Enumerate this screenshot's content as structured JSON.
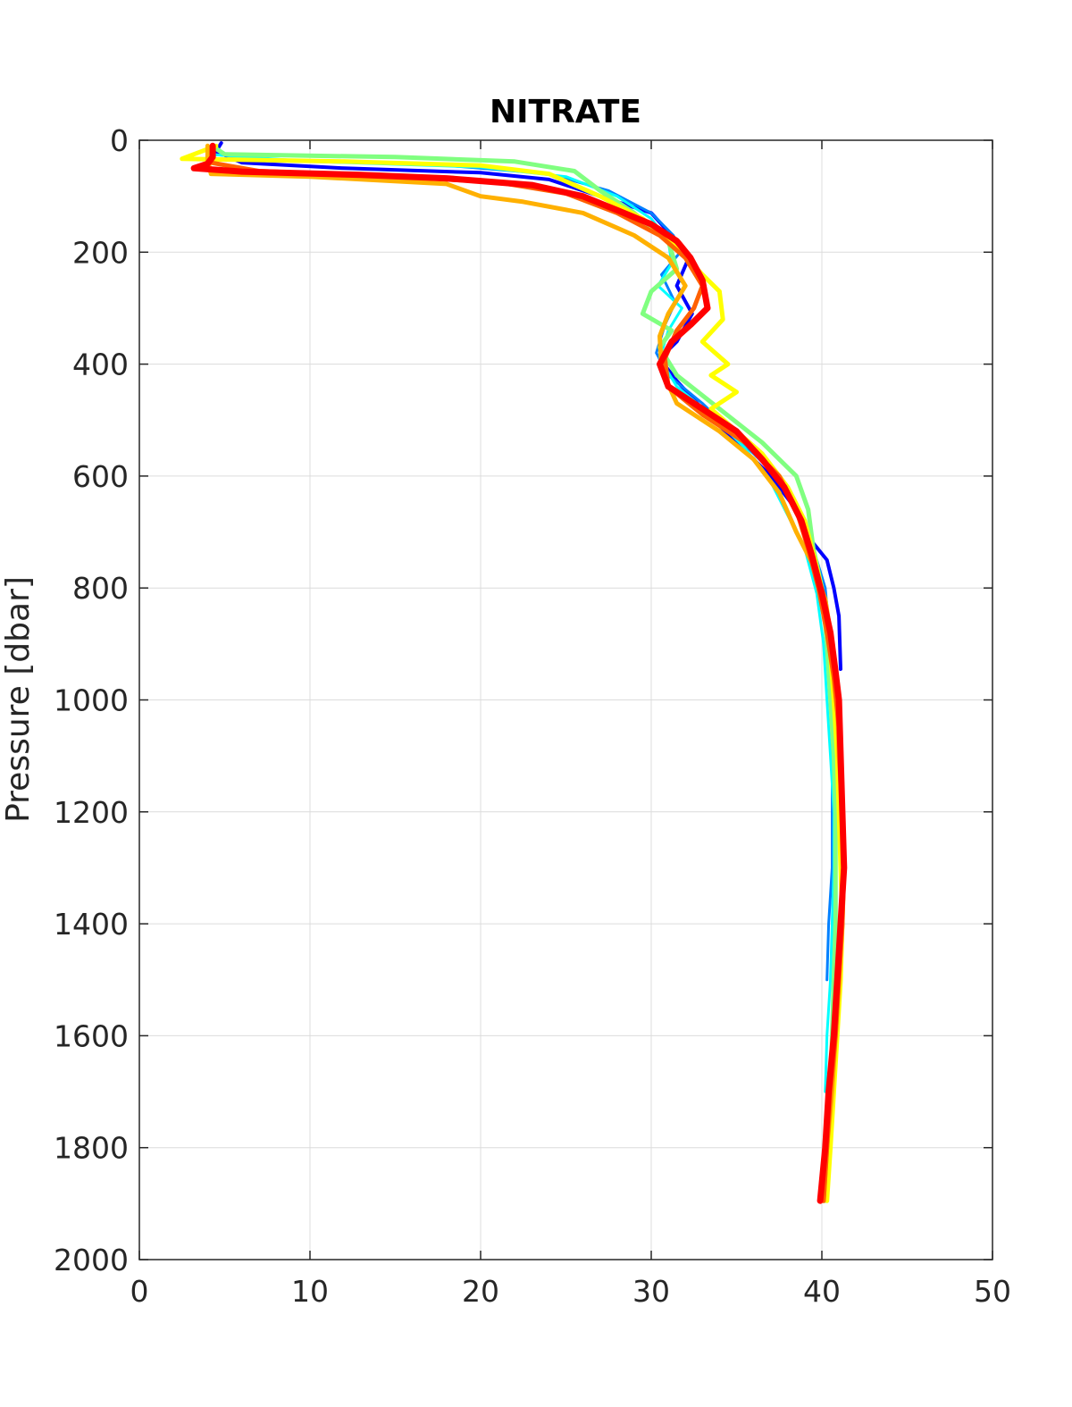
{
  "chart_data": {
    "type": "line",
    "title": "NITRATE",
    "xlabel": "",
    "ylabel": "Pressure [dbar]",
    "xlim": [
      0,
      50
    ],
    "ylim": [
      0,
      2000
    ],
    "y_reversed": true,
    "grid": true,
    "xticks": [
      0,
      10,
      20,
      30,
      40,
      50
    ],
    "yticks": [
      0,
      200,
      400,
      600,
      800,
      1000,
      1200,
      1400,
      1600,
      1800,
      2000
    ],
    "series": [
      {
        "color": "#0000ff",
        "width": 4,
        "points": [
          [
            4.8,
            5
          ],
          [
            4.5,
            20
          ],
          [
            6,
            40
          ],
          [
            12,
            50
          ],
          [
            20,
            58
          ],
          [
            24,
            70
          ],
          [
            27,
            100
          ],
          [
            30,
            130
          ],
          [
            31.5,
            180
          ],
          [
            32.2,
            210
          ],
          [
            31.5,
            260
          ],
          [
            32.4,
            310
          ],
          [
            31.5,
            360
          ],
          [
            30.5,
            390
          ],
          [
            31.5,
            430
          ],
          [
            33,
            480
          ],
          [
            35,
            540
          ],
          [
            37,
            600
          ],
          [
            38.5,
            660
          ],
          [
            39.5,
            720
          ],
          [
            40.3,
            750
          ],
          [
            40.7,
            800
          ],
          [
            41,
            850
          ],
          [
            41.1,
            945
          ]
        ]
      },
      {
        "color": "#0080ff",
        "width": 3,
        "points": [
          [
            4.5,
            10
          ],
          [
            4.2,
            25
          ],
          [
            8,
            35
          ],
          [
            18,
            45
          ],
          [
            24,
            60
          ],
          [
            27.5,
            90
          ],
          [
            30,
            130
          ],
          [
            31.3,
            170
          ],
          [
            31.7,
            200
          ],
          [
            30.6,
            240
          ],
          [
            31.4,
            290
          ],
          [
            30.8,
            330
          ],
          [
            30.3,
            380
          ],
          [
            31,
            420
          ],
          [
            33,
            470
          ],
          [
            35,
            530
          ],
          [
            37,
            590
          ],
          [
            38.5,
            650
          ],
          [
            39.5,
            730
          ],
          [
            40.2,
            800
          ],
          [
            40.5,
            900
          ],
          [
            40.6,
            1000
          ],
          [
            40.6,
            1100
          ],
          [
            40.6,
            1200
          ],
          [
            40.6,
            1300
          ],
          [
            40.4,
            1400
          ],
          [
            40.3,
            1500
          ]
        ]
      },
      {
        "color": "#00ffff",
        "width": 3,
        "points": [
          [
            4.3,
            8
          ],
          [
            4,
            25
          ],
          [
            10,
            38
          ],
          [
            20,
            48
          ],
          [
            25,
            65
          ],
          [
            28,
            100
          ],
          [
            30,
            140
          ],
          [
            31,
            180
          ],
          [
            31.2,
            220
          ],
          [
            30.4,
            260
          ],
          [
            31.8,
            300
          ],
          [
            31,
            340
          ],
          [
            30.5,
            390
          ],
          [
            31.5,
            440
          ],
          [
            33.5,
            490
          ],
          [
            35.5,
            550
          ],
          [
            37,
            610
          ],
          [
            38,
            670
          ],
          [
            39,
            730
          ],
          [
            39.7,
            810
          ],
          [
            40.1,
            900
          ],
          [
            40.3,
            1000
          ],
          [
            40.5,
            1100
          ],
          [
            40.7,
            1200
          ],
          [
            40.7,
            1300
          ],
          [
            40.6,
            1400
          ],
          [
            40.5,
            1500
          ],
          [
            40.3,
            1600
          ],
          [
            40.2,
            1700
          ]
        ]
      },
      {
        "color": "#80ff80",
        "width": 5,
        "points": [
          [
            4.5,
            15
          ],
          [
            5,
            25
          ],
          [
            15,
            30
          ],
          [
            22,
            38
          ],
          [
            25.5,
            55
          ],
          [
            27,
            90
          ],
          [
            29,
            130
          ],
          [
            31,
            180
          ],
          [
            31.5,
            230
          ],
          [
            30,
            270
          ],
          [
            29.5,
            310
          ],
          [
            31.2,
            340
          ],
          [
            30.5,
            370
          ],
          [
            31.5,
            420
          ],
          [
            34,
            480
          ],
          [
            36.5,
            540
          ],
          [
            38.5,
            600
          ],
          [
            39.2,
            660
          ],
          [
            39.5,
            730
          ],
          [
            40,
            800
          ],
          [
            40.3,
            900
          ],
          [
            40.5,
            1000
          ],
          [
            40.7,
            1100
          ],
          [
            40.8,
            1200
          ],
          [
            40.8,
            1300
          ],
          [
            40.8,
            1400
          ],
          [
            40.7,
            1500
          ],
          [
            40.6,
            1600
          ],
          [
            40.5,
            1700
          ],
          [
            40.3,
            1800
          ],
          [
            40.2,
            1895
          ]
        ]
      },
      {
        "color": "#ffff00",
        "width": 5,
        "points": [
          [
            4.5,
            10
          ],
          [
            2.5,
            33
          ],
          [
            12,
            38
          ],
          [
            20,
            45
          ],
          [
            24,
            60
          ],
          [
            27,
            100
          ],
          [
            29.5,
            140
          ],
          [
            31.5,
            190
          ],
          [
            33,
            240
          ],
          [
            34,
            270
          ],
          [
            34.2,
            320
          ],
          [
            33,
            360
          ],
          [
            34.5,
            400
          ],
          [
            33.5,
            420
          ],
          [
            35,
            450
          ],
          [
            33.5,
            480
          ],
          [
            35,
            520
          ],
          [
            36.5,
            560
          ],
          [
            38,
            620
          ],
          [
            39,
            680
          ],
          [
            39.6,
            750
          ],
          [
            40.2,
            830
          ],
          [
            40.5,
            920
          ],
          [
            40.7,
            1000
          ],
          [
            40.9,
            1100
          ],
          [
            41,
            1200
          ],
          [
            41.1,
            1300
          ],
          [
            41.2,
            1400
          ],
          [
            41.1,
            1500
          ],
          [
            40.9,
            1600
          ],
          [
            40.7,
            1700
          ],
          [
            40.5,
            1800
          ],
          [
            40.3,
            1895
          ]
        ]
      },
      {
        "color": "#ffb000",
        "width": 5,
        "points": [
          [
            4,
            10
          ],
          [
            4,
            35
          ],
          [
            4.2,
            60
          ],
          [
            10,
            65
          ],
          [
            18,
            78
          ],
          [
            20,
            100
          ],
          [
            22.5,
            110
          ],
          [
            26,
            130
          ],
          [
            29,
            170
          ],
          [
            31,
            210
          ],
          [
            32,
            260
          ],
          [
            31,
            310
          ],
          [
            30.5,
            350
          ],
          [
            30.6,
            410
          ],
          [
            31.5,
            470
          ],
          [
            34,
            520
          ],
          [
            36,
            570
          ],
          [
            37.5,
            630
          ],
          [
            38.5,
            700
          ],
          [
            39.5,
            760
          ],
          [
            40.2,
            820
          ],
          [
            40.6,
            900
          ],
          [
            40.9,
            1000
          ],
          [
            41,
            1100
          ],
          [
            41.2,
            1200
          ],
          [
            41.3,
            1300
          ],
          [
            41.2,
            1400
          ],
          [
            41,
            1500
          ],
          [
            40.8,
            1600
          ],
          [
            40.6,
            1700
          ],
          [
            40.3,
            1800
          ],
          [
            40.1,
            1895
          ]
        ]
      },
      {
        "color": "#ff6000",
        "width": 5,
        "points": [
          [
            4.3,
            10
          ],
          [
            4.2,
            40
          ],
          [
            7,
            55
          ],
          [
            15,
            65
          ],
          [
            21,
            75
          ],
          [
            25,
            95
          ],
          [
            28,
            130
          ],
          [
            30.5,
            170
          ],
          [
            32,
            210
          ],
          [
            33,
            260
          ],
          [
            32.5,
            300
          ],
          [
            31.5,
            340
          ],
          [
            30.8,
            390
          ],
          [
            31,
            440
          ],
          [
            33,
            490
          ],
          [
            35.5,
            540
          ],
          [
            37.5,
            600
          ],
          [
            38.5,
            660
          ],
          [
            39.2,
            730
          ],
          [
            39.8,
            800
          ],
          [
            40.3,
            880
          ],
          [
            40.7,
            960
          ],
          [
            41,
            1050
          ],
          [
            41.2,
            1200
          ],
          [
            41.3,
            1300
          ],
          [
            41.2,
            1400
          ],
          [
            41,
            1500
          ],
          [
            40.8,
            1600
          ],
          [
            40.5,
            1700
          ],
          [
            40.3,
            1800
          ],
          [
            40.1,
            1895
          ]
        ]
      },
      {
        "color": "#ff0000",
        "width": 7,
        "points": [
          [
            4.3,
            10
          ],
          [
            4.3,
            30
          ],
          [
            4,
            42
          ],
          [
            3.2,
            50
          ],
          [
            6,
            56
          ],
          [
            13,
            62
          ],
          [
            18,
            68
          ],
          [
            23,
            80
          ],
          [
            26,
            100
          ],
          [
            28,
            125
          ],
          [
            30,
            150
          ],
          [
            31.5,
            180
          ],
          [
            32.3,
            210
          ],
          [
            33,
            250
          ],
          [
            33.3,
            300
          ],
          [
            32.3,
            330
          ],
          [
            31.2,
            360
          ],
          [
            30.5,
            400
          ],
          [
            31,
            440
          ],
          [
            33,
            480
          ],
          [
            35,
            520
          ],
          [
            36.5,
            570
          ],
          [
            37.8,
            620
          ],
          [
            38.8,
            680
          ],
          [
            39.4,
            740
          ],
          [
            40,
            810
          ],
          [
            40.5,
            880
          ],
          [
            40.8,
            950
          ],
          [
            41,
            1000
          ],
          [
            41.1,
            1100
          ],
          [
            41.2,
            1200
          ],
          [
            41.3,
            1300
          ],
          [
            41.1,
            1400
          ],
          [
            40.9,
            1500
          ],
          [
            40.7,
            1600
          ],
          [
            40.4,
            1700
          ],
          [
            40.2,
            1800
          ],
          [
            39.9,
            1895
          ]
        ]
      }
    ]
  }
}
